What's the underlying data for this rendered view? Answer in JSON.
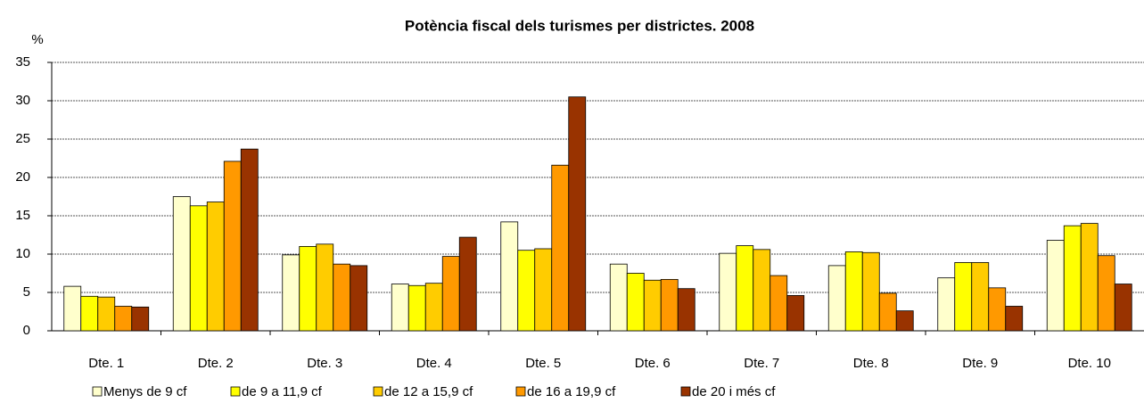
{
  "chart_data": {
    "type": "bar",
    "title": "Potència fiscal dels turismes per districtes. 2008",
    "y_label": "%",
    "categories": [
      "Dte. 1",
      "Dte. 2",
      "Dte. 3",
      "Dte. 4",
      "Dte. 5",
      "Dte. 6",
      "Dte. 7",
      "Dte. 8",
      "Dte. 9",
      "Dte. 10"
    ],
    "series": [
      {
        "name": "Menys de 9 cf",
        "color": "#ffffcc",
        "values": [
          5.8,
          17.5,
          9.9,
          6.1,
          14.2,
          8.7,
          10.1,
          8.5,
          6.9,
          11.8
        ]
      },
      {
        "name": "de 9 a 11,9 cf",
        "color": "#ffff00",
        "values": [
          4.5,
          16.3,
          11.0,
          5.9,
          10.5,
          7.5,
          11.1,
          10.3,
          8.9,
          13.7
        ]
      },
      {
        "name": "de 12 a 15,9 cf",
        "color": "#ffcc00",
        "values": [
          4.4,
          16.8,
          11.3,
          6.2,
          10.7,
          6.6,
          10.6,
          10.2,
          8.9,
          14.0
        ]
      },
      {
        "name": "de 16 a 19,9 cf",
        "color": "#ff9900",
        "values": [
          3.2,
          22.1,
          8.7,
          9.7,
          21.6,
          6.7,
          7.2,
          4.9,
          5.6,
          9.8
        ]
      },
      {
        "name": "de 20 i més cf",
        "color": "#993300",
        "values": [
          3.1,
          23.7,
          8.5,
          12.2,
          30.5,
          5.5,
          4.6,
          2.6,
          3.2,
          6.1
        ]
      }
    ],
    "ylim": [
      0,
      35
    ],
    "yticks": [
      0,
      5,
      10,
      15,
      20,
      25,
      30,
      35
    ],
    "grid": true,
    "legend": "bottom"
  }
}
